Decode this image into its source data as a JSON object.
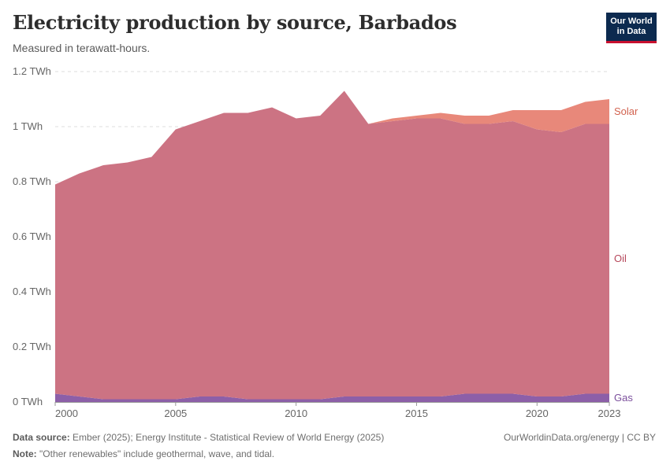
{
  "header": {
    "title": "Electricity production by source, Barbados",
    "subtitle": "Measured in terawatt-hours."
  },
  "logo": {
    "line1": "Our World",
    "line2": "in Data"
  },
  "footer": {
    "source_label": "Data source:",
    "source_text": "Ember (2025); Energy Institute - Statistical Review of World Energy (2025)",
    "note_label": "Note:",
    "note_text": "\"Other renewables\" include geothermal, wave, and tidal.",
    "link": "OurWorldinData.org/energy | CC BY"
  },
  "chart_data": {
    "type": "area",
    "stacked": true,
    "x": [
      2000,
      2001,
      2002,
      2003,
      2004,
      2005,
      2006,
      2007,
      2008,
      2009,
      2010,
      2011,
      2012,
      2013,
      2014,
      2015,
      2016,
      2017,
      2018,
      2019,
      2020,
      2021,
      2022,
      2023
    ],
    "xlim": [
      2000,
      2023
    ],
    "ylim": [
      0,
      1.2
    ],
    "y_ticks": [
      {
        "value": 0,
        "label": "0 TWh"
      },
      {
        "value": 0.2,
        "label": "0.2 TWh"
      },
      {
        "value": 0.4,
        "label": "0.4 TWh"
      },
      {
        "value": 0.6,
        "label": "0.6 TWh"
      },
      {
        "value": 0.8,
        "label": "0.8 TWh"
      },
      {
        "value": 1.0,
        "label": "1 TWh"
      },
      {
        "value": 1.2,
        "label": "1.2 TWh"
      }
    ],
    "x_ticks": [
      {
        "value": 2000,
        "label": "2000"
      },
      {
        "value": 2005,
        "label": "2005"
      },
      {
        "value": 2010,
        "label": "2010"
      },
      {
        "value": 2015,
        "label": "2015"
      },
      {
        "value": 2020,
        "label": "2020"
      },
      {
        "value": 2023,
        "label": "2023"
      }
    ],
    "grid": true,
    "legend": "right, inline labels",
    "series": [
      {
        "name": "Gas",
        "color": "#8c5fa8",
        "label_color": "#7b4f9c",
        "values": [
          0.03,
          0.02,
          0.01,
          0.01,
          0.01,
          0.01,
          0.02,
          0.02,
          0.01,
          0.01,
          0.01,
          0.01,
          0.02,
          0.02,
          0.02,
          0.02,
          0.02,
          0.03,
          0.03,
          0.03,
          0.02,
          0.02,
          0.03,
          0.03
        ]
      },
      {
        "name": "Oil",
        "color": "#cc7383",
        "label_color": "#b6475b",
        "values": [
          0.76,
          0.81,
          0.85,
          0.86,
          0.88,
          0.98,
          1.0,
          1.03,
          1.04,
          1.06,
          1.02,
          1.03,
          1.11,
          0.99,
          1.0,
          1.01,
          1.01,
          0.98,
          0.98,
          0.99,
          0.97,
          0.96,
          0.98,
          0.98
        ]
      },
      {
        "name": "Solar",
        "color": "#e8887a",
        "label_color": "#d2624f",
        "values": [
          0,
          0,
          0,
          0,
          0,
          0,
          0,
          0,
          0,
          0,
          0,
          0,
          0,
          0,
          0.01,
          0.01,
          0.02,
          0.03,
          0.03,
          0.04,
          0.07,
          0.08,
          0.08,
          0.09
        ]
      }
    ]
  }
}
